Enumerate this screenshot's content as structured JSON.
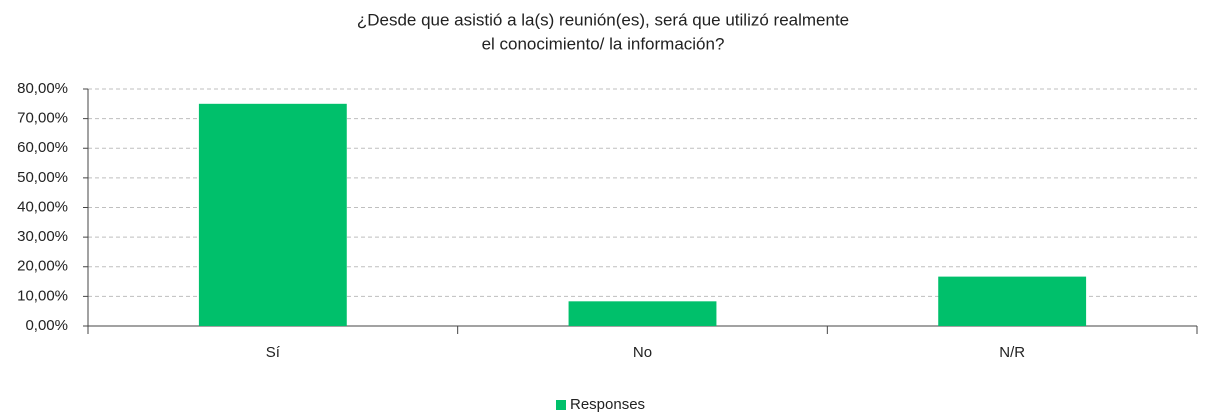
{
  "chart_data": {
    "type": "bar",
    "title": [
      "¿Desde que asistió a la(s) reunión(es), será que utilizó realmente",
      "el conocimiento/ la información?"
    ],
    "categories": [
      "Sí",
      "No",
      "N/R"
    ],
    "series": [
      {
        "name": "Responses",
        "color": "#00c06b",
        "values": [
          75,
          8.33,
          16.67
        ]
      }
    ],
    "ylim": [
      0,
      80
    ],
    "yticks": [
      {
        "value": 0,
        "label": "0,00%"
      },
      {
        "value": 10,
        "label": "10,00%"
      },
      {
        "value": 20,
        "label": "20,00%"
      },
      {
        "value": 30,
        "label": "30,00%"
      },
      {
        "value": 40,
        "label": "40,00%"
      },
      {
        "value": 50,
        "label": "50,00%"
      },
      {
        "value": 60,
        "label": "60,00%"
      },
      {
        "value": 70,
        "label": "70,00%"
      },
      {
        "value": 80,
        "label": "80,00%"
      }
    ],
    "grid": true,
    "legend": "bottom"
  }
}
